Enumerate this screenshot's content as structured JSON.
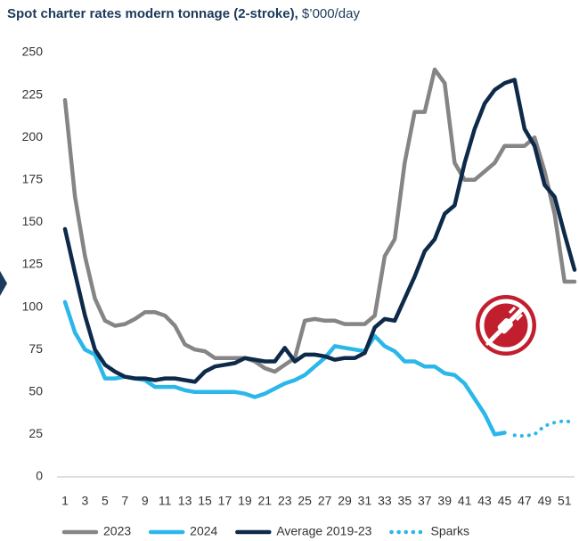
{
  "chart_data": {
    "type": "line",
    "title": "Spot charter rates modern tonnage (2-stroke),",
    "subtitle": "$’000/day",
    "x": [
      1,
      2,
      3,
      4,
      5,
      6,
      7,
      8,
      9,
      10,
      11,
      12,
      13,
      14,
      15,
      16,
      17,
      18,
      19,
      20,
      21,
      22,
      23,
      24,
      25,
      26,
      27,
      28,
      29,
      30,
      31,
      32,
      33,
      34,
      35,
      36,
      37,
      38,
      39,
      40,
      41,
      42,
      43,
      44,
      45,
      46,
      47,
      48,
      49,
      50,
      51,
      52
    ],
    "xlim": [
      1,
      52
    ],
    "xticks": [
      1,
      3,
      5,
      7,
      9,
      11,
      13,
      15,
      17,
      19,
      21,
      23,
      25,
      27,
      29,
      31,
      33,
      35,
      37,
      39,
      41,
      43,
      45,
      47,
      49,
      51
    ],
    "ylim": [
      0,
      250
    ],
    "yticks": [
      0,
      25,
      50,
      75,
      100,
      125,
      150,
      175,
      200,
      225,
      250
    ],
    "grid": false,
    "legend": "bottom",
    "series": [
      {
        "name": "2023",
        "color": "#858585",
        "dash": "solid",
        "values": [
          222,
          165,
          130,
          105,
          92,
          89,
          90,
          93,
          97,
          97,
          95,
          89,
          78,
          75,
          74,
          70,
          70,
          70,
          70,
          68,
          64,
          62,
          66,
          70,
          92,
          93,
          92,
          92,
          90,
          90,
          90,
          95,
          130,
          140,
          185,
          215,
          215,
          240,
          232,
          185,
          175,
          175,
          180,
          185,
          195,
          195,
          195,
          200,
          180,
          155,
          115,
          115
        ]
      },
      {
        "name": "2024",
        "color": "#2bb7ea",
        "dash": "solid",
        "values": [
          103,
          85,
          75,
          72,
          58,
          58,
          59,
          58,
          57,
          53,
          53,
          53,
          51,
          50,
          50,
          50,
          50,
          50,
          49,
          47,
          49,
          52,
          55,
          57,
          60,
          65,
          70,
          77,
          76,
          75,
          74,
          83,
          77,
          74,
          68,
          68,
          65,
          65,
          61,
          60,
          55,
          46,
          37,
          25,
          26,
          null,
          null,
          null,
          null,
          null,
          null,
          null
        ]
      },
      {
        "name": "Average 2019-23",
        "color": "#0d2a4a",
        "dash": "solid",
        "values": [
          146,
          120,
          95,
          75,
          66,
          62,
          59,
          58,
          58,
          57,
          58,
          58,
          57,
          56,
          62,
          65,
          66,
          67,
          70,
          69,
          68,
          68,
          76,
          68,
          72,
          72,
          71,
          69,
          70,
          70,
          73,
          88,
          93,
          92,
          105,
          118,
          133,
          140,
          155,
          160,
          185,
          205,
          220,
          228,
          232,
          234,
          205,
          195,
          172,
          165,
          143,
          122
        ]
      },
      {
        "name": "Sparks",
        "color": "#2bb7ea",
        "dash": "dotted",
        "values": [
          null,
          null,
          null,
          null,
          null,
          null,
          null,
          null,
          null,
          null,
          null,
          null,
          null,
          null,
          null,
          null,
          null,
          null,
          null,
          null,
          null,
          null,
          null,
          null,
          null,
          null,
          null,
          null,
          null,
          null,
          null,
          null,
          null,
          null,
          null,
          null,
          null,
          null,
          null,
          null,
          null,
          null,
          null,
          null,
          null,
          24.5,
          24,
          25,
          30,
          32,
          33,
          32
        ]
      }
    ]
  }
}
